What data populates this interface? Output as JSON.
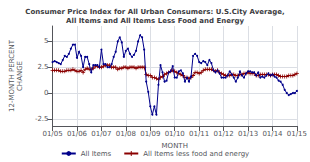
{
  "chart_data": {
    "type": "line",
    "title": "Consumer Price Index for All Urban Consumers: U.S.City Average,\nAll Items and All Items Less Food and Energy",
    "xlabel": "MONTH",
    "ylabel": "12-MONTH PERCENT\nCHANGE",
    "categories": [
      "01/05",
      null,
      null,
      null,
      null,
      null,
      null,
      null,
      null,
      null,
      null,
      null,
      "01/06",
      null,
      null,
      null,
      null,
      null,
      null,
      null,
      null,
      null,
      null,
      null,
      "01/07",
      null,
      null,
      null,
      null,
      null,
      null,
      null,
      null,
      null,
      null,
      null,
      "01/08",
      null,
      null,
      null,
      null,
      null,
      null,
      null,
      null,
      null,
      null,
      null,
      "01/09",
      null,
      null,
      null,
      null,
      null,
      null,
      null,
      null,
      null,
      null,
      null,
      "01/10",
      null,
      null,
      null,
      null,
      null,
      null,
      null,
      null,
      null,
      null,
      null,
      "01/11",
      null,
      null,
      null,
      null,
      null,
      null,
      null,
      null,
      null,
      null,
      null,
      "01/12",
      null,
      null,
      null,
      null,
      null,
      null,
      null,
      null,
      null,
      null,
      null,
      "01/13",
      null,
      null,
      null,
      null,
      null,
      null,
      null,
      null,
      null,
      null,
      null,
      "01/14",
      null,
      null,
      null,
      null,
      null,
      null,
      null,
      null,
      null,
      null,
      null,
      "01/15"
    ],
    "ylim": [
      -3.2,
      6.5
    ],
    "yticks": [
      -2.5,
      0,
      2.5,
      5
    ],
    "grid": true,
    "legend": "bottom",
    "series": [
      {
        "name": "All Items",
        "color": "#00008b",
        "marker": "circle",
        "values": [
          3.0,
          3.1,
          3.0,
          2.9,
          2.8,
          3.2,
          3.6,
          3.5,
          3.8,
          4.3,
          4.7,
          4.7,
          3.4,
          4.0,
          3.6,
          2.5,
          3.5,
          3.5,
          2.8,
          2.0,
          2.7,
          2.7,
          2.7,
          2.5,
          4.2,
          2.8,
          2.8,
          2.5,
          2.5,
          2.8,
          3.5,
          4.0,
          5.0,
          5.4,
          4.9,
          3.5,
          4.1,
          4.3,
          3.8,
          3.5,
          3.7,
          4.1,
          5.0,
          5.6,
          5.4,
          4.2,
          1.1,
          0.1,
          -1.3,
          -2.1,
          -1.3,
          -2.1,
          0.8,
          2.7,
          2.0,
          1.1,
          1.2,
          2.0,
          2.1,
          2.6,
          1.5,
          1.5,
          2.1,
          2.2,
          1.9,
          1.1,
          1.5,
          1.1,
          1.6,
          3.6,
          3.8,
          3.6,
          3.0,
          2.9,
          3.1,
          3.0,
          2.7,
          3.2,
          2.9,
          2.2,
          2.0,
          2.2,
          1.9,
          1.5,
          1.5,
          1.5,
          1.7,
          2.1,
          1.8,
          1.5,
          1.1,
          1.5,
          2.1,
          1.7,
          1.5,
          1.9,
          2.1,
          2.1,
          2.0,
          2.0,
          1.7,
          2.0,
          1.5,
          1.6,
          1.5,
          1.7,
          1.9,
          1.7,
          1.8,
          1.6,
          1.5,
          1.2,
          1.1,
          0.8,
          0.3,
          0.0,
          -0.2,
          -0.1,
          0.0,
          0.0,
          0.2
        ]
      },
      {
        "name": "All Items less food and energy",
        "color": "#8b0000",
        "marker": "plus",
        "values": [
          2.2,
          2.2,
          2.2,
          2.2,
          2.1,
          2.1,
          2.1,
          2.2,
          2.2,
          2.2,
          2.3,
          2.2,
          2.1,
          2.1,
          2.2,
          2.0,
          2.3,
          2.4,
          2.3,
          2.3,
          2.4,
          2.6,
          2.6,
          2.5,
          2.5,
          2.6,
          2.7,
          2.7,
          2.7,
          2.5,
          2.5,
          2.5,
          2.3,
          2.4,
          2.4,
          2.5,
          2.5,
          2.4,
          2.5,
          2.5,
          2.5,
          2.4,
          2.5,
          2.5,
          2.5,
          2.5,
          1.8,
          1.7,
          1.7,
          1.5,
          1.5,
          1.4,
          1.3,
          1.5,
          1.6,
          1.8,
          1.9,
          2.0,
          2.1,
          2.2,
          2.1,
          2.0,
          1.9,
          1.8,
          1.7,
          1.5,
          1.5,
          1.4,
          1.5,
          1.7,
          2.0,
          2.0,
          1.9,
          2.0,
          2.2,
          2.3,
          2.3,
          2.3,
          2.3,
          2.2,
          2.1,
          2.2,
          2.0,
          1.9,
          1.8,
          1.7,
          1.7,
          1.7,
          1.8,
          1.8,
          1.7,
          1.7,
          1.8,
          1.8,
          1.9,
          1.9,
          2.0,
          1.9,
          1.9,
          1.9,
          1.7,
          1.7,
          1.8,
          1.8,
          1.8,
          1.8,
          1.8,
          1.7,
          1.8,
          1.8,
          1.8,
          1.7,
          1.6,
          1.6,
          1.6,
          1.6,
          1.7,
          1.7,
          1.7,
          1.8,
          1.9
        ]
      }
    ]
  }
}
